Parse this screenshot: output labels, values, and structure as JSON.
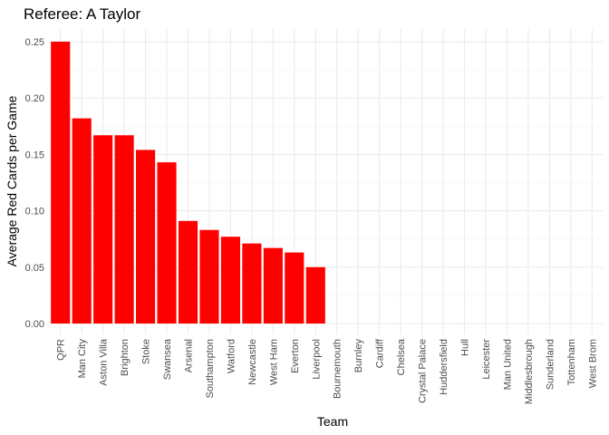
{
  "chart_data": {
    "type": "bar",
    "title": "Referee: A Taylor",
    "xlabel": "Team",
    "ylabel": "Average Red Cards per Game",
    "categories": [
      "QPR",
      "Man City",
      "Aston Villa",
      "Brighton",
      "Stoke",
      "Swansea",
      "Arsenal",
      "Southampton",
      "Watford",
      "Newcastle",
      "West Ham",
      "Everton",
      "Liverpool",
      "Bournemouth",
      "Burnley",
      "Cardiff",
      "Chelsea",
      "Crystal Palace",
      "Huddersfield",
      "Hull",
      "Leicester",
      "Man United",
      "Middlesbrough",
      "Sunderland",
      "Tottenham",
      "West Brom"
    ],
    "values": [
      0.25,
      0.182,
      0.167,
      0.167,
      0.154,
      0.143,
      0.091,
      0.083,
      0.077,
      0.071,
      0.067,
      0.063,
      0.05,
      0,
      0,
      0,
      0,
      0,
      0,
      0,
      0,
      0,
      0,
      0,
      0,
      0
    ],
    "ylim": [
      0,
      0.25
    ],
    "yticks": [
      0.0,
      0.05,
      0.1,
      0.15,
      0.2,
      0.25
    ],
    "ytick_labels": [
      "0.00",
      "0.05",
      "0.10",
      "0.15",
      "0.20",
      "0.25"
    ],
    "bar_color": "#ff0000",
    "grid": true,
    "legend": "none"
  }
}
